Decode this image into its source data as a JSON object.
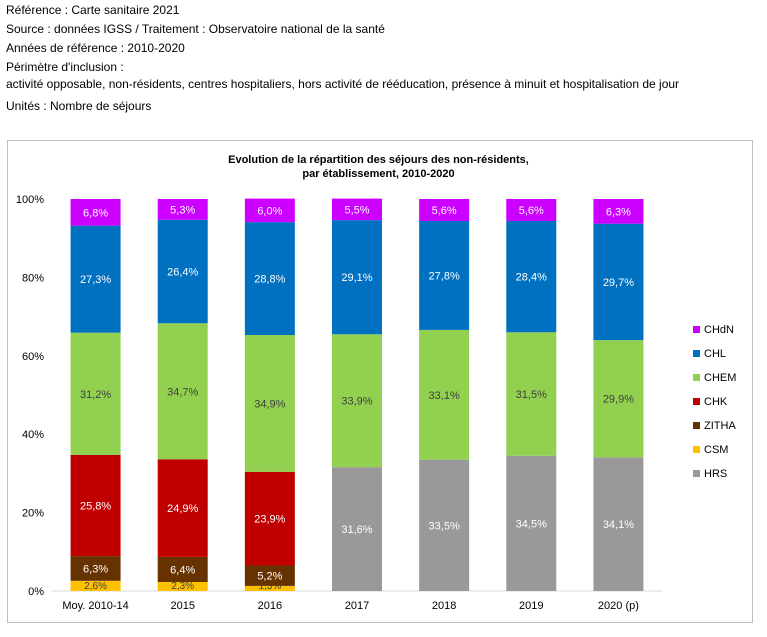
{
  "header": {
    "reference": "Référence : Carte sanitaire 2021",
    "source": "Source : données IGSS / Traitement : Observatoire national de la santé",
    "years": "Années de référence : 2010-2020",
    "scope_label": "Périmètre d'inclusion :",
    "scope": "activité opposable, non-résidents, centres hospitaliers, hors activité de rééducation, présence à minuit et hospitalisation de jour",
    "units": "Unités : Nombre de séjours"
  },
  "colors": {
    "HRS": "#999999",
    "CSM": "#ffc000",
    "ZITHA": "#663300",
    "CHK": "#c00000",
    "CHEM": "#92d050",
    "CHL": "#0070c0",
    "CHdN": "#cc00ff"
  },
  "chart_data": {
    "type": "bar",
    "stacked": true,
    "title_line1": "Evolution de la répartition des séjours des non-résidents,",
    "title_line2": "par établissement, 2010-2020",
    "categories": [
      "Moy. 2010-14",
      "2015",
      "2016",
      "2017",
      "2018",
      "2019",
      "2020 (p)"
    ],
    "ylim": [
      0,
      100
    ],
    "yticks": [
      "0%",
      "20%",
      "40%",
      "60%",
      "80%",
      "100%"
    ],
    "legend_position": "right",
    "legend_order": [
      "CHdN",
      "CHL",
      "CHEM",
      "CHK",
      "ZITHA",
      "CSM",
      "HRS"
    ],
    "series": [
      {
        "name": "HRS",
        "values": [
          0,
          0,
          0,
          31.6,
          33.5,
          34.5,
          34.1
        ],
        "labels": [
          "",
          "",
          "",
          "31,6%",
          "33,5%",
          "34,5%",
          "34,1%"
        ]
      },
      {
        "name": "CSM",
        "values": [
          2.6,
          2.3,
          1.3,
          0,
          0,
          0,
          0
        ],
        "labels": [
          "2,6%",
          "2,3%",
          "1,3%",
          "",
          "",
          "",
          ""
        ]
      },
      {
        "name": "ZITHA",
        "values": [
          6.3,
          6.4,
          5.2,
          0,
          0,
          0,
          0
        ],
        "labels": [
          "6,3%",
          "6,4%",
          "5,2%",
          "",
          "",
          "",
          ""
        ]
      },
      {
        "name": "CHK",
        "values": [
          25.8,
          24.9,
          23.9,
          0,
          0,
          0,
          0
        ],
        "labels": [
          "25,8%",
          "24,9%",
          "23,9%",
          "",
          "",
          "",
          ""
        ]
      },
      {
        "name": "CHEM",
        "values": [
          31.2,
          34.7,
          34.9,
          33.9,
          33.1,
          31.5,
          29.9
        ],
        "labels": [
          "31,2%",
          "34,7%",
          "34,9%",
          "33,9%",
          "33,1%",
          "31,5%",
          "29,9%"
        ]
      },
      {
        "name": "CHL",
        "values": [
          27.3,
          26.4,
          28.8,
          29.1,
          27.8,
          28.4,
          29.7
        ],
        "labels": [
          "27,3%",
          "26,4%",
          "28,8%",
          "29,1%",
          "27,8%",
          "28,4%",
          "29,7%"
        ]
      },
      {
        "name": "CHdN",
        "values": [
          6.8,
          5.3,
          6.0,
          5.5,
          5.6,
          5.6,
          6.3
        ],
        "labels": [
          "6,8%",
          "5,3%",
          "6,0%",
          "5,5%",
          "5,6%",
          "5,6%",
          "6,3%"
        ]
      }
    ]
  }
}
